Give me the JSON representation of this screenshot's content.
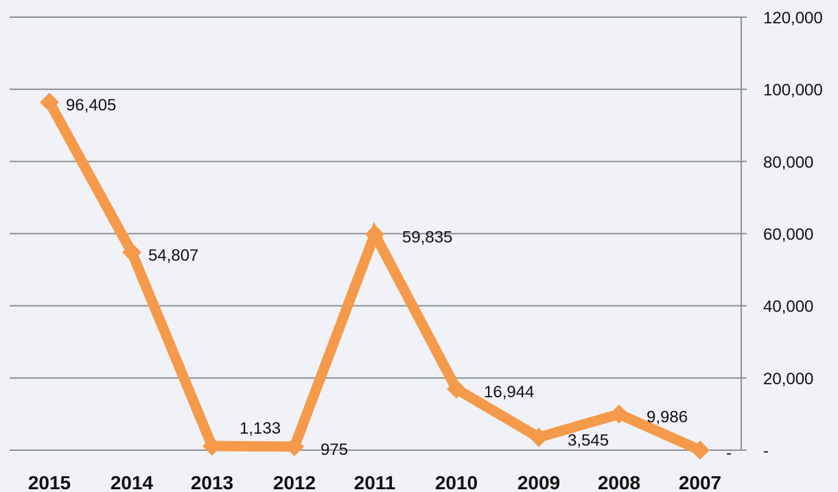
{
  "chart_data": {
    "type": "line",
    "categories": [
      "2015",
      "2014",
      "2013",
      "2012",
      "2011",
      "2010",
      "2009",
      "2008",
      "2007"
    ],
    "series": [
      {
        "values": [
          96405,
          54807,
          1133,
          975,
          59835,
          16944,
          3545,
          9986,
          0
        ],
        "color": "#f59a4a"
      }
    ],
    "data_labels": [
      "96,405",
      "54,807",
      "1,133",
      "975",
      "59,835",
      "16,944",
      "3,545",
      "9,986",
      "-"
    ],
    "y_ticks": [
      0,
      20000,
      40000,
      60000,
      80000,
      100000,
      120000
    ],
    "y_tick_labels": [
      "-",
      "20,000",
      "40,000",
      "60,000",
      "80,000",
      "100,000",
      "120,000"
    ],
    "ylim": [
      0,
      120000
    ],
    "y_axis_position": "right",
    "grid": true,
    "legend": "none",
    "marker": "diamond",
    "title": "",
    "xlabel": "",
    "ylabel": ""
  }
}
